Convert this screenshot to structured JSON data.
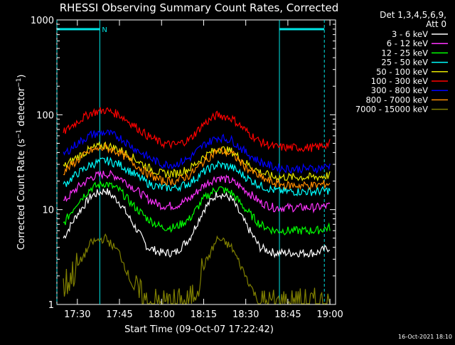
{
  "title": "RHESSI Observing Summary Count Rates, Corrected",
  "footer_timestamp": "16-Oct-2021 18:10",
  "detector_info": [
    "Det 1,3,4,5,6,9,",
    "Att 0"
  ],
  "colors": {
    "background": "#000000",
    "axes": "#ffffff",
    "text": "#ffffff",
    "flag_markers": "#00e5e5"
  },
  "chart_data": {
    "type": "line",
    "title": "RHESSI Observing Summary Count Rates, Corrected",
    "xlabel": "Start Time (09-Oct-07 17:22:42)",
    "ylabel": "Corrected Count Rate (s-1 detector-1)",
    "y_scale": "log",
    "xlim": [
      "17:22:42",
      "19:02:00"
    ],
    "ylim": [
      1,
      1000
    ],
    "x_ticks": [
      "17:30",
      "17:45",
      "18:00",
      "18:15",
      "18:30",
      "18:45",
      "19:00"
    ],
    "y_ticks": [
      "1",
      "10",
      "100",
      "1000"
    ],
    "grid": false,
    "legend_position": "right-outside",
    "legend_title": [
      "Det 1,3,4,5,6,9,",
      "Att 0"
    ],
    "x": [
      "17:25",
      "17:30",
      "17:35",
      "17:40",
      "17:45",
      "17:50",
      "17:55",
      "18:00",
      "18:05",
      "18:10",
      "18:15",
      "18:20",
      "18:25",
      "18:30",
      "18:35",
      "18:40",
      "18:45",
      "18:50",
      "18:55",
      "19:00"
    ],
    "series": [
      {
        "name": "3 - 6 keV",
        "color": "#ffffff",
        "values": [
          5,
          9,
          14,
          16,
          12,
          7,
          4,
          3.5,
          3.5,
          5,
          10,
          15,
          13,
          7,
          4,
          3.5,
          3.5,
          3.5,
          3.5,
          4
        ]
      },
      {
        "name": "6 - 12 keV",
        "color": "#ff33ff",
        "values": [
          12,
          17,
          22,
          24,
          22,
          17,
          13,
          11,
          11,
          13,
          18,
          22,
          20,
          16,
          12,
          10.5,
          10.5,
          10.5,
          10.5,
          11
        ]
      },
      {
        "name": "12 - 25 keV",
        "color": "#00ff00",
        "values": [
          7,
          12,
          17,
          19,
          16,
          11,
          8,
          6.5,
          6.5,
          8,
          13,
          17,
          15,
          10,
          7,
          6,
          6,
          6,
          6,
          6.5
        ]
      },
      {
        "name": "25 - 50 keV",
        "color": "#00ffff",
        "values": [
          18,
          24,
          30,
          33,
          30,
          24,
          19,
          17,
          17,
          19,
          25,
          30,
          28,
          22,
          18,
          16,
          15.5,
          15.5,
          15.5,
          16
        ]
      },
      {
        "name": "50 - 100 keV",
        "color": "#e5e500",
        "values": [
          28,
          36,
          44,
          48,
          43,
          35,
          28,
          24,
          24,
          27,
          36,
          44,
          41,
          31,
          25,
          22,
          22,
          22,
          22,
          23
        ]
      },
      {
        "name": "100 - 300 keV",
        "color": "#ff0000",
        "values": [
          65,
          85,
          105,
          112,
          100,
          78,
          60,
          50,
          48,
          55,
          80,
          100,
          92,
          68,
          52,
          46,
          45,
          45,
          45,
          50
        ]
      },
      {
        "name": "300 - 800 keV",
        "color": "#0000ff",
        "values": [
          38,
          50,
          62,
          65,
          58,
          45,
          36,
          30,
          30,
          35,
          48,
          58,
          54,
          40,
          32,
          28,
          27,
          27,
          27,
          29
        ]
      },
      {
        "name": "800 - 7000 keV",
        "color": "#ff8c00",
        "values": [
          25,
          33,
          42,
          45,
          40,
          31,
          24,
          20,
          20,
          23,
          32,
          42,
          39,
          28,
          22,
          19,
          18,
          18,
          18,
          19
        ]
      },
      {
        "name": "7000 - 15000 keV",
        "color": "#808000",
        "values": [
          1.5,
          2.5,
          4.5,
          5,
          3.5,
          1.5,
          1,
          1,
          1,
          1,
          2.5,
          5,
          4,
          2,
          1,
          1,
          1,
          1,
          1,
          1
        ]
      }
    ],
    "flags": [
      {
        "label": "N",
        "start": "17:22:42",
        "end": "17:38:00"
      },
      {
        "label": "",
        "start": "18:42:00",
        "end": "18:58:00"
      }
    ]
  }
}
